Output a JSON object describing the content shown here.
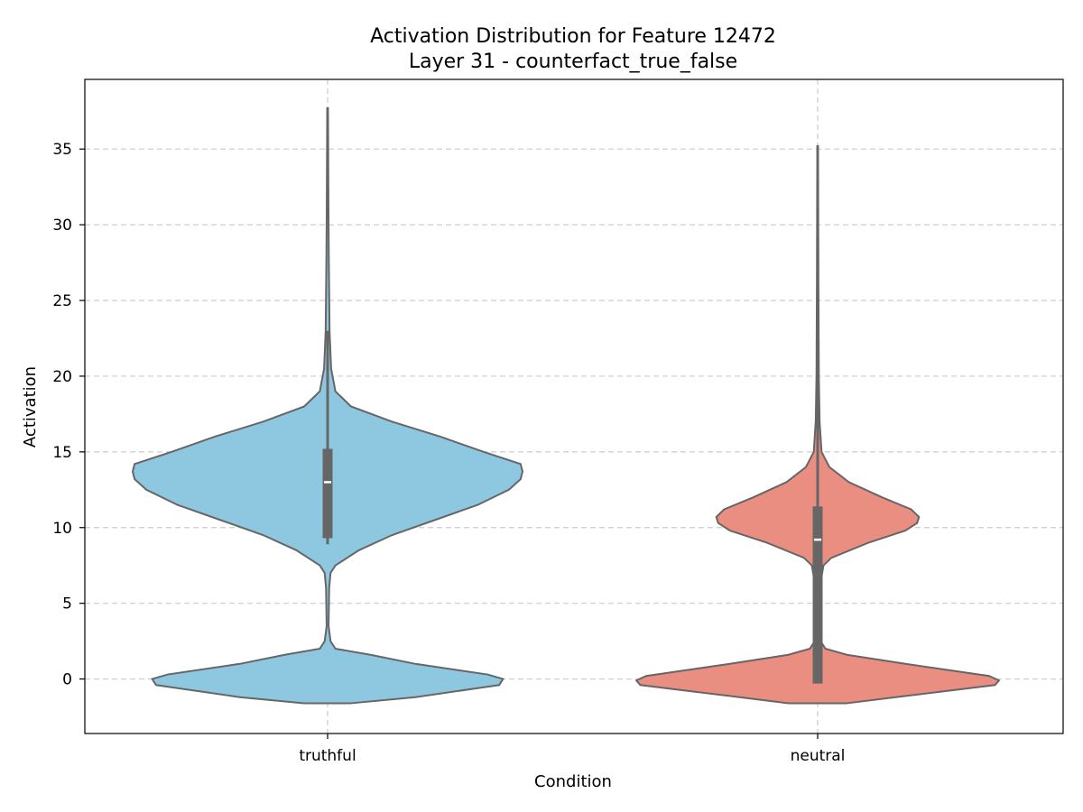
{
  "chart_data": {
    "type": "violin",
    "title": "Activation Distribution for Feature 12472",
    "subtitle": "Layer 31 - counterfact_true_false",
    "xlabel": "Condition",
    "ylabel": "Activation",
    "categories": [
      "truthful",
      "neutral"
    ],
    "ylim": [
      -3.6,
      39.6
    ],
    "yticks": [
      0,
      5,
      10,
      15,
      20,
      25,
      30,
      35
    ],
    "grid": true,
    "series": [
      {
        "category": "truthful",
        "color": "#8ec8e0",
        "min": -1.6,
        "max": 37.7,
        "median": 13.0,
        "q1": 9.3,
        "q3": 15.2,
        "whisker_low": 8.9,
        "whisker_high": 23.0,
        "profile": [
          [
            -1.6,
            0.12
          ],
          [
            -1.2,
            0.45
          ],
          [
            -0.4,
            0.88
          ],
          [
            0.0,
            0.9
          ],
          [
            0.3,
            0.82
          ],
          [
            1.0,
            0.45
          ],
          [
            1.6,
            0.22
          ],
          [
            2.0,
            0.04
          ],
          [
            2.5,
            0.015
          ],
          [
            3.5,
            0.005
          ],
          [
            6.0,
            0.008
          ],
          [
            7.0,
            0.015
          ],
          [
            7.5,
            0.04
          ],
          [
            8.5,
            0.16
          ],
          [
            9.5,
            0.33
          ],
          [
            10.5,
            0.55
          ],
          [
            11.5,
            0.77
          ],
          [
            12.5,
            0.93
          ],
          [
            13.2,
            0.99
          ],
          [
            13.7,
            1.0
          ],
          [
            14.2,
            0.99
          ],
          [
            15.0,
            0.8
          ],
          [
            16.0,
            0.58
          ],
          [
            17.0,
            0.33
          ],
          [
            18.0,
            0.12
          ],
          [
            19.0,
            0.04
          ],
          [
            20.5,
            0.018
          ],
          [
            23.0,
            0.01
          ],
          [
            28.0,
            0.006
          ],
          [
            32.0,
            0.004
          ],
          [
            37.7,
            0.002
          ]
        ]
      },
      {
        "category": "neutral",
        "color": "#ea8e82",
        "min": -1.6,
        "max": 35.2,
        "median": 9.2,
        "q1": -0.3,
        "q3": 11.4,
        "whisker_low": -0.3,
        "whisker_high": 27.8,
        "profile": [
          [
            -1.6,
            0.15
          ],
          [
            -1.2,
            0.4
          ],
          [
            -0.4,
            0.91
          ],
          [
            -0.1,
            0.93
          ],
          [
            0.2,
            0.88
          ],
          [
            1.0,
            0.45
          ],
          [
            1.6,
            0.15
          ],
          [
            2.0,
            0.04
          ],
          [
            2.5,
            0.015
          ],
          [
            4.0,
            0.008
          ],
          [
            6.0,
            0.01
          ],
          [
            7.5,
            0.03
          ],
          [
            8.0,
            0.07
          ],
          [
            9.0,
            0.26
          ],
          [
            9.8,
            0.45
          ],
          [
            10.3,
            0.51
          ],
          [
            10.7,
            0.52
          ],
          [
            11.2,
            0.48
          ],
          [
            12.0,
            0.33
          ],
          [
            13.0,
            0.16
          ],
          [
            14.0,
            0.06
          ],
          [
            15.0,
            0.02
          ],
          [
            17.0,
            0.01
          ],
          [
            20.0,
            0.006
          ],
          [
            26.0,
            0.004
          ],
          [
            30.0,
            0.003
          ],
          [
            35.2,
            0.002
          ]
        ]
      }
    ]
  }
}
